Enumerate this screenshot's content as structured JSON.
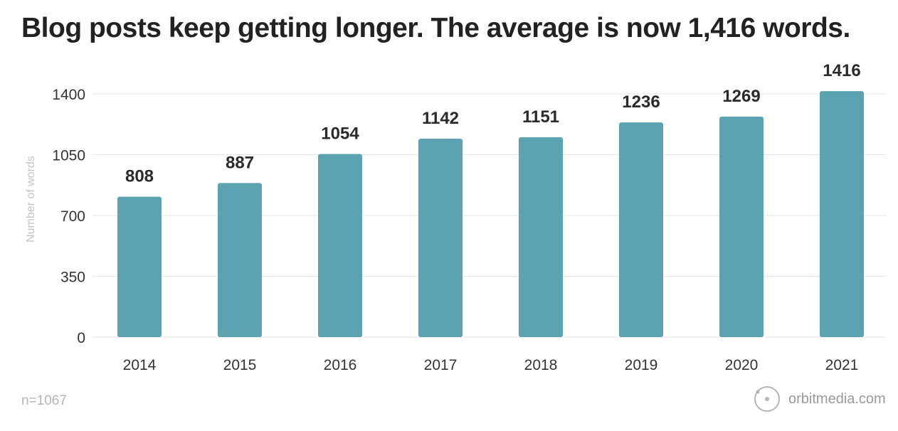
{
  "header": {
    "title": "Blog posts keep getting longer. The average is now 1,416 words."
  },
  "footer": {
    "sample_note": "n=1067",
    "brand": "orbitmedia.com"
  },
  "colors": {
    "bar": "#5ba3b0",
    "title": "#222222",
    "grid": "#e6e6e6",
    "muted": "#b5b5b5"
  },
  "chart_data": {
    "type": "bar",
    "title": "Blog posts keep getting longer. The average is now 1,416 words.",
    "xlabel": "",
    "ylabel": "Number of words",
    "categories": [
      "2014",
      "2015",
      "2016",
      "2017",
      "2018",
      "2019",
      "2020",
      "2021"
    ],
    "values": [
      808,
      887,
      1054,
      1142,
      1151,
      1236,
      1269,
      1416
    ],
    "ylim": [
      0,
      1400
    ],
    "yticks": [
      0,
      350,
      700,
      1050,
      1400
    ],
    "grid": true,
    "data_labels": true,
    "legend": "none"
  }
}
